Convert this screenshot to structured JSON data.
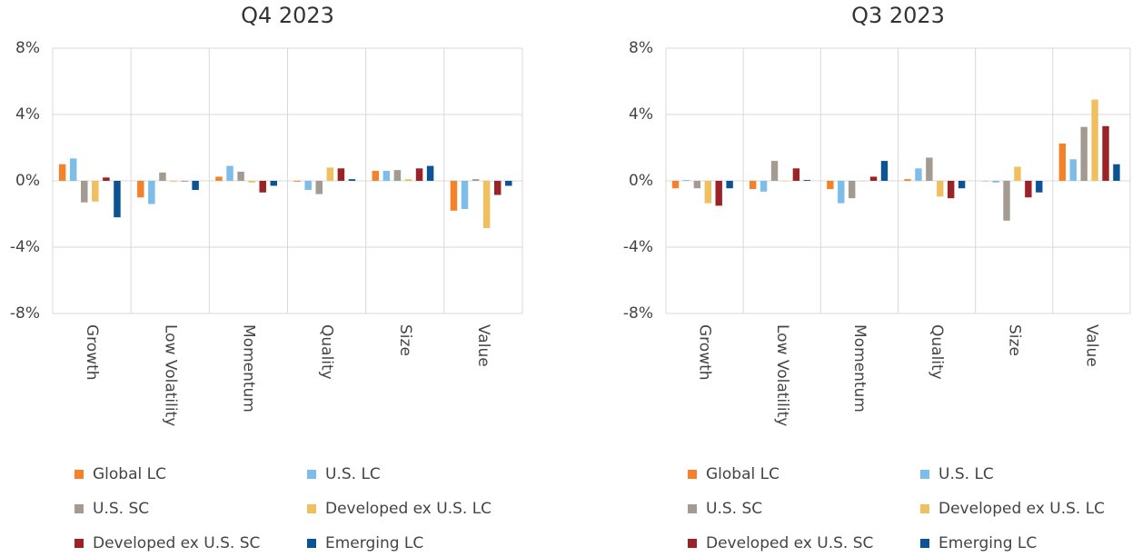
{
  "chart_data": [
    {
      "type": "bar",
      "title": "Q4 2023",
      "categories": [
        "Growth",
        "Low Volatility",
        "Momentum",
        "Quality",
        "Size",
        "Value"
      ],
      "ylim": [
        -8,
        8
      ],
      "yticks": [
        {
          "value": -8,
          "label": "-8%"
        },
        {
          "value": -4,
          "label": "-4%"
        },
        {
          "value": 0,
          "label": "0%"
        },
        {
          "value": 4,
          "label": "4%"
        },
        {
          "value": 8,
          "label": "8%"
        }
      ],
      "grid": true,
      "series": [
        {
          "name": "Global LC",
          "color": "#f5822a",
          "values": [
            1.0,
            -1.0,
            0.25,
            -0.05,
            0.6,
            -1.8
          ]
        },
        {
          "name": "U.S. LC",
          "color": "#7cbde9",
          "values": [
            1.35,
            -1.4,
            0.9,
            -0.55,
            0.6,
            -1.7
          ]
        },
        {
          "name": "U.S. SC",
          "color": "#a39a92",
          "values": [
            -1.3,
            0.5,
            0.55,
            -0.8,
            0.65,
            0.1
          ]
        },
        {
          "name": "Developed ex U.S. LC",
          "color": "#f0c060",
          "values": [
            -1.25,
            -0.05,
            -0.1,
            0.8,
            0.1,
            -2.85
          ]
        },
        {
          "name": "Developed ex U.S. SC",
          "color": "#9b2226",
          "values": [
            0.2,
            0,
            -0.7,
            0.75,
            0.75,
            -0.85
          ]
        },
        {
          "name": "Emerging LC",
          "color": "#0b5394",
          "values": [
            -2.2,
            -0.55,
            -0.3,
            0.1,
            0.9,
            -0.3
          ]
        }
      ]
    },
    {
      "type": "bar",
      "title": "Q3 2023",
      "categories": [
        "Growth",
        "Low Volatility",
        "Momentum",
        "Quality",
        "Size",
        "Value"
      ],
      "ylim": [
        -8,
        8
      ],
      "yticks": [
        {
          "value": -8,
          "label": "-8%"
        },
        {
          "value": -4,
          "label": "-4%"
        },
        {
          "value": 0,
          "label": "0%"
        },
        {
          "value": 4,
          "label": "4%"
        },
        {
          "value": 8,
          "label": "8%"
        }
      ],
      "grid": true,
      "series": [
        {
          "name": "Global LC",
          "color": "#f5822a",
          "values": [
            -0.45,
            -0.5,
            -0.5,
            0.1,
            0,
            2.25
          ]
        },
        {
          "name": "U.S. LC",
          "color": "#7cbde9",
          "values": [
            0.05,
            -0.65,
            -1.35,
            0.75,
            -0.1,
            1.3
          ]
        },
        {
          "name": "U.S. SC",
          "color": "#a39a92",
          "values": [
            -0.45,
            1.2,
            -1.05,
            1.4,
            -2.4,
            3.25
          ]
        },
        {
          "name": "Developed ex U.S. LC",
          "color": "#f0c060",
          "values": [
            -1.35,
            0,
            0,
            -0.95,
            0.85,
            4.9
          ]
        },
        {
          "name": "Developed ex U.S. SC",
          "color": "#9b2226",
          "values": [
            -1.5,
            0.75,
            0.25,
            -1.05,
            -1.0,
            3.3
          ]
        },
        {
          "name": "Emerging LC",
          "color": "#0b5394",
          "values": [
            -0.45,
            0.05,
            1.2,
            -0.45,
            -0.7,
            1.0
          ]
        }
      ]
    }
  ]
}
